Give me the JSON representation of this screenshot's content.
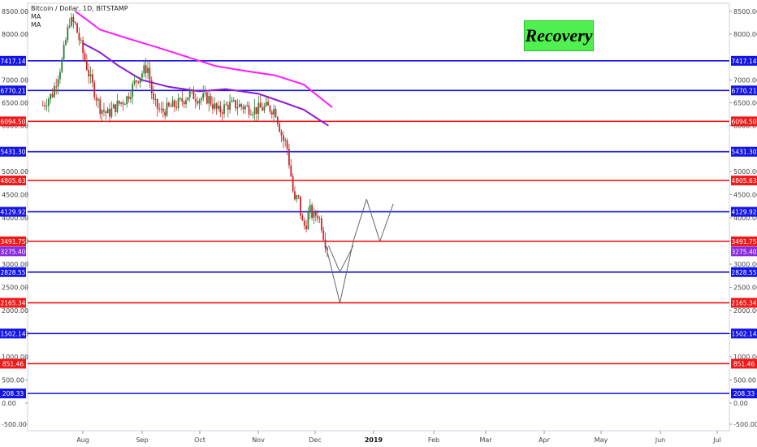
{
  "chart_title": "Bitcoin / Dollar, 1D, BITSTAMP",
  "indicators": [
    "MA",
    "MA"
  ],
  "annotation": "Recovery",
  "colors": {
    "support_line": "#1414e6",
    "resistance_line": "#ee1b1b",
    "current_price": "#8a2be2",
    "ma_slow": "#ff1aff",
    "ma_fast": "#8b1ad9",
    "candle_up": "#2e7d32",
    "candle_down": "#c62828",
    "projection": "#666666",
    "badge": "#4ff04f"
  },
  "chart_data": {
    "type": "line",
    "ylim": [
      -500,
      8600
    ],
    "y_ticks": [
      -500,
      0,
      500,
      1000,
      1500,
      2000,
      2500,
      3000,
      3500,
      4000,
      4500,
      5000,
      6000,
      6500,
      7000,
      8000,
      8500
    ],
    "y_tick_labels": [
      "-500.00",
      "0.00",
      "500.00",
      "1000.00",
      "1500.00",
      "2000.00",
      "2500.00",
      "3000.00",
      "3500.00",
      "4000.00",
      "4500.00",
      "5000.00",
      "6000.00",
      "6500.00",
      "7000.00",
      "8000.00",
      "8500.00"
    ],
    "x_ticks": [
      "Aug",
      "Sep",
      "Oct",
      "Nov",
      "Dec",
      "2019",
      "Feb",
      "Mar",
      "Apr",
      "May",
      "Jun",
      "Jul"
    ],
    "horizontal_levels": [
      {
        "value": 7417.14,
        "label": "7417.14",
        "kind": "support"
      },
      {
        "value": 6770.21,
        "label": "6770.21",
        "kind": "support"
      },
      {
        "value": 6094.5,
        "label": "6094.50",
        "kind": "resistance"
      },
      {
        "value": 5431.3,
        "label": "5431.30",
        "kind": "support"
      },
      {
        "value": 4805.63,
        "label": "4805.63",
        "kind": "resistance"
      },
      {
        "value": 4129.92,
        "label": "4129.92",
        "kind": "support"
      },
      {
        "value": 3491.75,
        "label": "3491.75",
        "kind": "resistance"
      },
      {
        "value": 2828.55,
        "label": "2828.55",
        "kind": "support"
      },
      {
        "value": 2165.34,
        "label": "2165.34",
        "kind": "resistance"
      },
      {
        "value": 1502.14,
        "label": "1502.14",
        "kind": "support"
      },
      {
        "value": 851.46,
        "label": "851.46",
        "kind": "resistance"
      },
      {
        "value": 208.33,
        "label": "208.33",
        "kind": "support"
      }
    ],
    "current_price": {
      "value": 3275.4,
      "label": "3275.40"
    },
    "price_path": [
      [
        "Jul 11",
        6450
      ],
      [
        "Jul 16",
        6700
      ],
      [
        "Jul 21",
        7400
      ],
      [
        "Jul 25",
        8300
      ],
      [
        "Jul 28",
        8200
      ],
      [
        "Aug 1",
        7600
      ],
      [
        "Aug 5",
        7000
      ],
      [
        "Aug 10",
        6400
      ],
      [
        "Aug 14",
        6250
      ],
      [
        "Aug 19",
        6450
      ],
      [
        "Aug 24",
        6600
      ],
      [
        "Aug 29",
        7000
      ],
      [
        "Sep 4",
        7300
      ],
      [
        "Sep 7",
        6500
      ],
      [
        "Sep 11",
        6300
      ],
      [
        "Sep 16",
        6400
      ],
      [
        "Sep 21",
        6500
      ],
      [
        "Sep 26",
        6700
      ],
      [
        "Oct 1",
        6600
      ],
      [
        "Oct 6",
        6600
      ],
      [
        "Oct 11",
        6300
      ],
      [
        "Oct 16",
        6450
      ],
      [
        "Oct 21",
        6450
      ],
      [
        "Oct 26",
        6400
      ],
      [
        "Oct 31",
        6350
      ],
      [
        "Nov 5",
        6400
      ],
      [
        "Nov 10",
        6350
      ],
      [
        "Nov 14",
        5700
      ],
      [
        "Nov 16",
        5600
      ],
      [
        "Nov 19",
        4700
      ],
      [
        "Nov 20",
        4300
      ],
      [
        "Nov 22",
        4500
      ],
      [
        "Nov 24",
        3900
      ],
      [
        "Nov 26",
        3800
      ],
      [
        "Nov 28",
        4200
      ],
      [
        "Nov 30",
        4000
      ],
      [
        "Dec 2",
        4100
      ],
      [
        "Dec 4",
        3900
      ],
      [
        "Dec 6",
        3500
      ],
      [
        "Dec 8",
        3300
      ]
    ],
    "series": [
      {
        "name": "MA",
        "kind": "slow",
        "points": [
          [
            "Jul 28",
            8500
          ],
          [
            "Aug 10",
            8100
          ],
          [
            "Aug 25",
            7900
          ],
          [
            "Sep 10",
            7700
          ],
          [
            "Sep 25",
            7500
          ],
          [
            "Oct 10",
            7300
          ],
          [
            "Oct 25",
            7200
          ],
          [
            "Nov 10",
            7100
          ],
          [
            "Nov 25",
            6900
          ],
          [
            "Dec 10",
            6400
          ]
        ]
      },
      {
        "name": "MA",
        "kind": "fast",
        "points": [
          [
            "Aug 1",
            7800
          ],
          [
            "Aug 10",
            7600
          ],
          [
            "Aug 20",
            7300
          ],
          [
            "Sep 1",
            7000
          ],
          [
            "Sep 15",
            6850
          ],
          [
            "Oct 1",
            6750
          ],
          [
            "Oct 15",
            6800
          ],
          [
            "Nov 1",
            6700
          ],
          [
            "Nov 15",
            6500
          ],
          [
            "Nov 25",
            6350
          ],
          [
            "Dec 8",
            6000
          ]
        ]
      }
    ],
    "projection": [
      {
        "from": [
          "Dec 6",
          3500
        ],
        "to": [
          "Dec 14",
          2165
        ]
      },
      {
        "from": [
          "Dec 14",
          2165
        ],
        "to": [
          "Dec 21",
          3491
        ]
      },
      {
        "from": [
          "Dec 21",
          3491
        ],
        "to": [
          "Dec 28",
          4400
        ]
      },
      {
        "from": [
          "Dec 28",
          4400
        ],
        "to": [
          "Jan 4",
          3491
        ]
      },
      {
        "from": [
          "Jan 4",
          3491
        ],
        "to": [
          "Jan 11",
          4300
        ]
      },
      {
        "from": [
          "Dec 8",
          3400
        ],
        "to": [
          "Dec 14",
          2828
        ]
      },
      {
        "from": [
          "Dec 14",
          2828
        ],
        "to": [
          "Dec 21",
          3400
        ]
      }
    ]
  }
}
